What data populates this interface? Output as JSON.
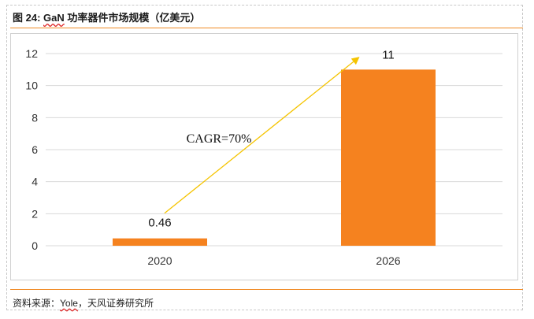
{
  "header": {
    "figure_label": "图 24:",
    "title_brand": "GaN",
    "title_rest": " 功率器件市场规模（亿美元）"
  },
  "footer": {
    "source_prefix": "资料来源：",
    "source_brand": "Yole",
    "source_rest": "，天风证券研究所"
  },
  "chart_data": {
    "type": "bar",
    "title": "GaN 功率器件市场规模（亿美元）",
    "categories": [
      "2020",
      "2026"
    ],
    "values": [
      0.46,
      11
    ],
    "data_labels": [
      "0.46",
      "11"
    ],
    "ylim": [
      0,
      12
    ],
    "yticks": [
      0,
      2,
      4,
      6,
      8,
      10,
      12
    ],
    "grid": true,
    "legend": "none",
    "annotation": {
      "text": "CAGR=70%"
    },
    "colors": {
      "bar": "#f5821f",
      "arrow": "#f5c400",
      "grid": "#d9d9d9"
    }
  }
}
